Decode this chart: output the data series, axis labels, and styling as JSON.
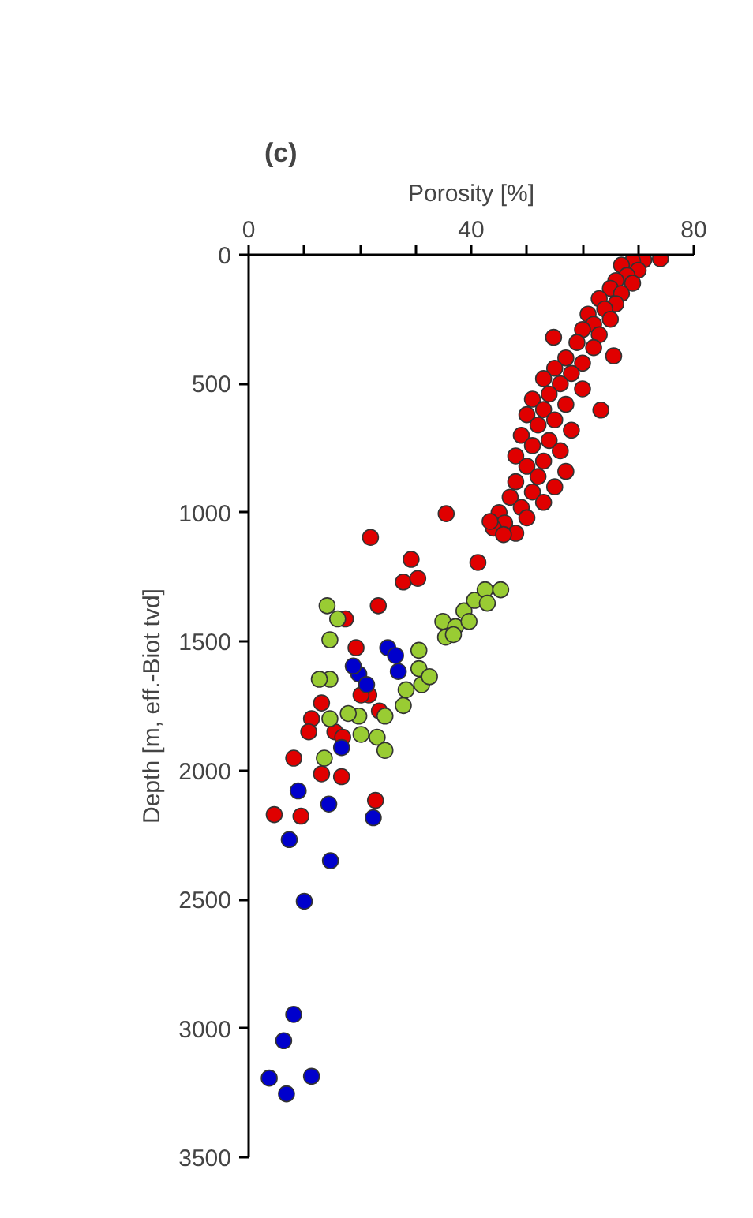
{
  "chart_data": {
    "type": "scatter",
    "title": "(c)",
    "xlabel": "Porosity [%]",
    "ylabel": "Depth [m, eff.-Biot tvd]",
    "xlim": [
      0,
      80
    ],
    "ylim": [
      3500,
      0
    ],
    "xticks": [
      0,
      {
        "value": 10,
        "label": null
      },
      {
        "value": 20,
        "label": null
      },
      {
        "value": 30,
        "label": null
      },
      40,
      {
        "value": 50,
        "label": null
      },
      {
        "value": 60,
        "label": null
      },
      {
        "value": 70,
        "label": null
      },
      80
    ],
    "yticks": [
      0,
      500,
      1000,
      1500,
      2000,
      2500,
      3000,
      3500
    ],
    "grid": false,
    "marker": "circle",
    "series": [
      {
        "color": "#e00000",
        "x": [
          74,
          71,
          69,
          67,
          70,
          68,
          66,
          69,
          65,
          67,
          63,
          66,
          64,
          61,
          65,
          62,
          60,
          63,
          59,
          62,
          54.8,
          65.6,
          57,
          60,
          55,
          58,
          53,
          56,
          60,
          54,
          51,
          57,
          53,
          63.3,
          50,
          55,
          52,
          58,
          49,
          54,
          51,
          56,
          48,
          53,
          50,
          57,
          52,
          48,
          55,
          51,
          47,
          53,
          49,
          45,
          50,
          46,
          44,
          48,
          43.4,
          45.8,
          35.5,
          41.2,
          21.9,
          29.2,
          27.8,
          30.4,
          23.3,
          17.4,
          19.3,
          13.1,
          11.3,
          10.8,
          15.5,
          21.6,
          23.5,
          8.1,
          13.1,
          16.7,
          22.8,
          4.6,
          9.4,
          20.2,
          16.9
        ],
        "values": [
          15,
          20,
          25,
          40,
          60,
          80,
          100,
          110,
          130,
          150,
          170,
          190,
          210,
          230,
          250,
          270,
          290,
          310,
          340,
          360,
          320,
          392,
          400,
          420,
          440,
          460,
          480,
          500,
          520,
          540,
          560,
          580,
          600,
          602,
          620,
          640,
          660,
          680,
          700,
          720,
          740,
          760,
          780,
          800,
          820,
          840,
          860,
          880,
          900,
          920,
          940,
          960,
          980,
          1000,
          1020,
          1040,
          1060,
          1080,
          1034,
          1085,
          1004,
          1193,
          1096,
          1181,
          1269,
          1255,
          1361,
          1412,
          1524,
          1738,
          1799,
          1850,
          1850,
          1707,
          1769,
          1952,
          2013,
          2024,
          2116,
          2171,
          2177,
          1707,
          1871
        ]
      },
      {
        "color": "#99cc33",
        "x": [
          14.1,
          16.0,
          14.6,
          14.6,
          14.6,
          13.6,
          19.8,
          20.2,
          23.1,
          24.5,
          24.5,
          27.8,
          28.3,
          31.1,
          30.6,
          30.6,
          32.5,
          34.9,
          35.4,
          37.2,
          38.7,
          40.6,
          42.5,
          45.3,
          42.9,
          39.6,
          36.8,
          17.9,
          12.7
        ],
        "values": [
          1361,
          1412,
          1493,
          1646,
          1799,
          1952,
          1789,
          1860,
          1871,
          1922,
          1789,
          1748,
          1687,
          1667,
          1605,
          1534,
          1636,
          1422,
          1483,
          1442,
          1381,
          1340,
          1299,
          1299,
          1351,
          1422,
          1473,
          1779,
          1646
        ]
      },
      {
        "color": "#0000cc",
        "x": [
          8.9,
          14.4,
          22.4,
          7.3,
          14.7,
          10.0,
          8.1,
          6.3,
          3.7,
          11.3,
          6.8,
          16.7,
          25.0,
          26.9,
          19.8,
          21.2,
          18.8,
          26.4
        ],
        "values": [
          2079,
          2130,
          2183,
          2268,
          2350,
          2507,
          2946,
          3048,
          3193,
          3186,
          3254,
          1911,
          1524,
          1616,
          1626,
          1667,
          1595,
          1554
        ]
      }
    ]
  }
}
